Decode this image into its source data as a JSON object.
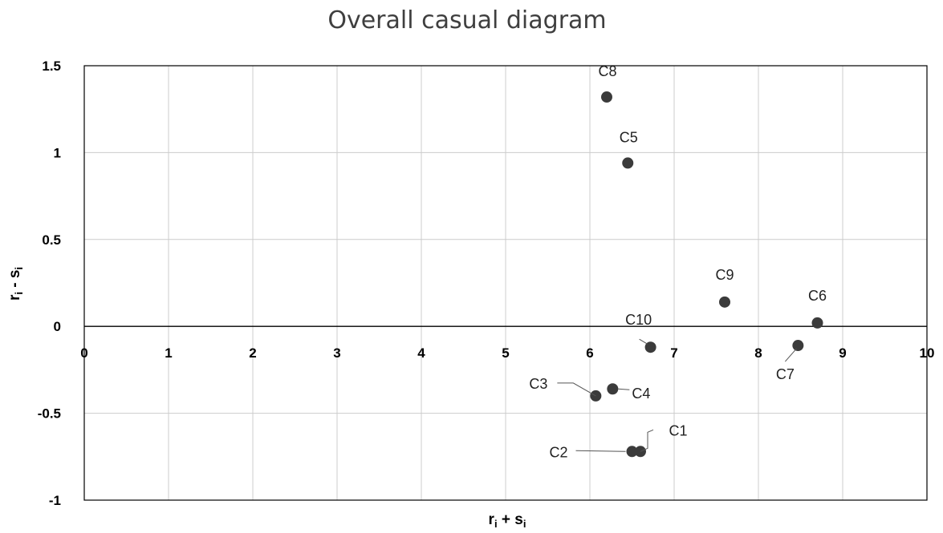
{
  "chart_data": {
    "type": "scatter",
    "title": "Overall casual diagram",
    "xlabel": {
      "main": "r",
      "sub1": "i",
      "op": " + s",
      "sub2": "i"
    },
    "ylabel": {
      "main": "r",
      "sub1": "i",
      "op": " - s",
      "sub2": "i"
    },
    "xlim": [
      0,
      10
    ],
    "ylim": [
      -1,
      1.5
    ],
    "xticks": [
      "0",
      "1",
      "2",
      "3",
      "4",
      "5",
      "6",
      "7",
      "8",
      "9",
      "10"
    ],
    "yticks": [
      "1.5",
      "1",
      "0.5",
      "0",
      "-0.5",
      "-1"
    ],
    "ytick_values": [
      1.5,
      1,
      0.5,
      0,
      -0.5,
      -1
    ],
    "grid": true,
    "point_color": "#3b3b3b",
    "points": [
      {
        "label": "C1",
        "x": 6.6,
        "y": -0.72
      },
      {
        "label": "C2",
        "x": 6.5,
        "y": -0.72
      },
      {
        "label": "C3",
        "x": 6.07,
        "y": -0.4
      },
      {
        "label": "C4",
        "x": 6.27,
        "y": -0.36
      },
      {
        "label": "C5",
        "x": 6.45,
        "y": 0.94
      },
      {
        "label": "C6",
        "x": 8.7,
        "y": 0.02
      },
      {
        "label": "C7",
        "x": 8.47,
        "y": -0.11
      },
      {
        "label": "C8",
        "x": 6.2,
        "y": 1.32
      },
      {
        "label": "C9",
        "x": 7.6,
        "y": 0.14
      },
      {
        "label": "C10",
        "x": 6.72,
        "y": -0.12
      }
    ]
  }
}
